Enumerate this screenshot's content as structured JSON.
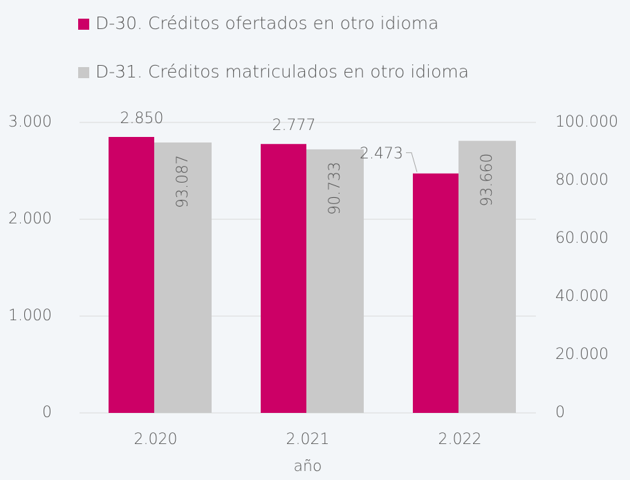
{
  "chart_data": {
    "type": "bar",
    "categories": [
      "2.020",
      "2.021",
      "2.022"
    ],
    "x_label": "año",
    "series": [
      {
        "name": "D-30. Créditos ofertados en otro idioma",
        "color": "#cc0066",
        "axis": "y",
        "values": [
          2850,
          2777,
          2473
        ],
        "value_labels": [
          "2.850",
          "2.777",
          "2.473"
        ]
      },
      {
        "name": "D-31. Créditos matriculados en otro idioma",
        "color": "#c9c9c9",
        "axis": "y2",
        "values": [
          93087,
          90733,
          93660
        ],
        "value_labels": [
          "93.087",
          "90.733",
          "93.660"
        ]
      }
    ],
    "ylim": [
      0,
      3000
    ],
    "yticks": [
      0,
      {
        "value": 1000,
        "label": "1.000"
      },
      {
        "value": 2000,
        "label": "2.000"
      },
      {
        "value": 3000,
        "label": "3.000"
      }
    ],
    "y2lim": [
      0,
      100000
    ],
    "y2ticks": [
      0,
      {
        "value": 20000,
        "label": "20.000"
      },
      {
        "value": 40000,
        "label": "40.000"
      },
      {
        "value": 60000,
        "label": "60.000"
      },
      {
        "value": 80000,
        "label": "80.000"
      },
      {
        "value": 100000,
        "label": "100.000"
      }
    ],
    "grid": true,
    "legend": "top"
  }
}
